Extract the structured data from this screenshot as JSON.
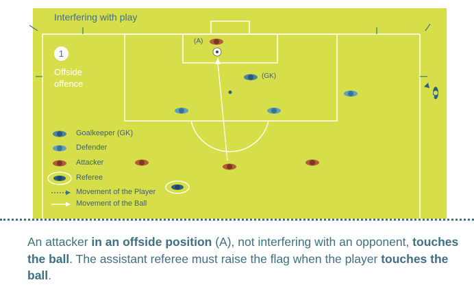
{
  "title": "Interfering with play",
  "panel": {
    "number": "1",
    "label": "Offside offence"
  },
  "pitch_labels": {
    "gk": "(GK)",
    "a": "(A)"
  },
  "legend": [
    {
      "label": "Goalkeeper (GK)",
      "kind": "goalkeeper"
    },
    {
      "label": "Defender",
      "kind": "defender"
    },
    {
      "label": "Attacker",
      "kind": "attacker"
    },
    {
      "label": "Referee",
      "kind": "referee"
    },
    {
      "label": "Movement of the Player",
      "kind": "player-movement"
    },
    {
      "label": "Movement of the Ball",
      "kind": "ball-movement"
    }
  ],
  "caption": {
    "p1": "An attacker ",
    "b1": "in an offside position",
    "p2": " (A), not interfering with an opponent, ",
    "b2": "touches the ball",
    "p3": ". The assistant referee must raise the flag when the player ",
    "b3": "touches the ball",
    "p4": "."
  },
  "colors": {
    "pitch": "#d6df4a",
    "lines": "#ffffff",
    "goalkeeper": "#4a82a8",
    "defender": "#5fa0bf",
    "attacker": "#b25c3c",
    "referee": "#2f5f7f",
    "text": "#3f6f83"
  }
}
